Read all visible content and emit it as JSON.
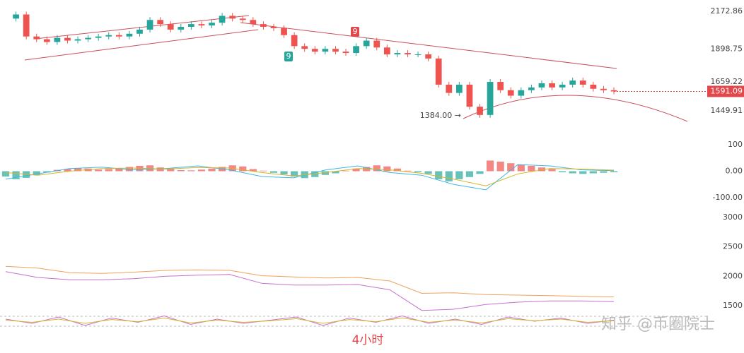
{
  "chart_data": [
    {
      "type": "candle",
      "name": "price",
      "close": [
        2120,
        2150,
        1990,
        1970,
        1950,
        1980,
        1960,
        1970,
        1980,
        1990,
        2000,
        1990,
        2010,
        2040,
        2110,
        2080,
        2040,
        2060,
        2080,
        2070,
        2090,
        2140,
        2120,
        2110,
        2080,
        2060,
        2050,
        2000,
        1920,
        1900,
        1880,
        1900,
        1880,
        1870,
        1920,
        1960,
        1910,
        1860,
        1870,
        1860,
        1860,
        1830,
        1640,
        1580,
        1640,
        1480,
        1420,
        1660,
        1600,
        1560,
        1600,
        1620,
        1650,
        1620,
        1640,
        1670,
        1640,
        1610,
        1600,
        1591.09
      ],
      "up_color": "#26a69a",
      "down_color": "#ef5350",
      "ylim": [
        1255,
        2255
      ],
      "yticks": [
        2172.86,
        1898.75,
        1659.22,
        1449.91
      ],
      "last_price": {
        "value": 1591.09,
        "label": "1591.09",
        "color": "#e2474b"
      },
      "low_marker": {
        "value": 1384,
        "label": "1384.00 →"
      },
      "signals": [
        "9",
        "9"
      ]
    },
    {
      "type": "macd",
      "name": "macd",
      "histogram": [
        -20,
        -30,
        -25,
        -15,
        -5,
        5,
        8,
        12,
        10,
        6,
        8,
        12,
        16,
        20,
        22,
        14,
        8,
        4,
        3,
        6,
        10,
        16,
        22,
        18,
        8,
        2,
        -6,
        -12,
        -20,
        -26,
        -22,
        -14,
        -8,
        2,
        10,
        16,
        22,
        18,
        10,
        2,
        -4,
        -10,
        -30,
        -38,
        -30,
        -22,
        -10,
        40,
        36,
        30,
        24,
        20,
        14,
        8,
        -4,
        -8,
        -10,
        -8,
        -6,
        -4
      ],
      "dif": [
        -30,
        -10,
        10,
        15,
        5,
        10,
        20,
        5,
        -20,
        -25,
        5,
        20,
        -5,
        -15,
        -50,
        -70,
        25,
        20,
        5,
        2
      ],
      "dea": [
        -5,
        -15,
        0,
        10,
        12,
        8,
        14,
        12,
        -5,
        -18,
        -5,
        10,
        5,
        -8,
        -30,
        -55,
        -10,
        10,
        8,
        4
      ],
      "pos_color": "#ef5350",
      "neg_color": "#26a69a",
      "ylim": [
        -126,
        126
      ],
      "yticks": [
        100,
        {
          "value": 0,
          "label": "0.00"
        },
        {
          "value": -100,
          "label": "-100.00"
        }
      ]
    },
    {
      "type": "band",
      "name": "boll",
      "upper": [
        2170,
        2140,
        2060,
        2050,
        2070,
        2100,
        2110,
        2100,
        2010,
        1990,
        1970,
        1980,
        1920,
        1710,
        1720,
        1690,
        1680,
        1670,
        1660,
        1650
      ],
      "lower": [
        2080,
        1980,
        1940,
        1940,
        1960,
        2000,
        2020,
        2030,
        1880,
        1850,
        1850,
        1860,
        1770,
        1420,
        1440,
        1520,
        1560,
        1580,
        1580,
        1570
      ],
      "ylim": [
        1356,
        3096
      ],
      "yticks": [
        3000,
        2500,
        2000,
        1500
      ]
    },
    {
      "type": "oscillator",
      "name": "kdj",
      "k": [
        60,
        40,
        70,
        30,
        65,
        45,
        75,
        35,
        60,
        40,
        55,
        70,
        30,
        65,
        45,
        75,
        40,
        60,
        35,
        70,
        50,
        65,
        40,
        55
      ],
      "d": [
        55,
        45,
        60,
        40,
        58,
        48,
        65,
        42,
        55,
        45,
        52,
        62,
        40,
        58,
        48,
        66,
        45,
        56,
        42,
        62,
        52,
        60,
        45,
        52
      ],
      "ylim": [
        0,
        100
      ]
    }
  ],
  "watermark": "知乎 @币圈院士",
  "timeframe": "4小时"
}
